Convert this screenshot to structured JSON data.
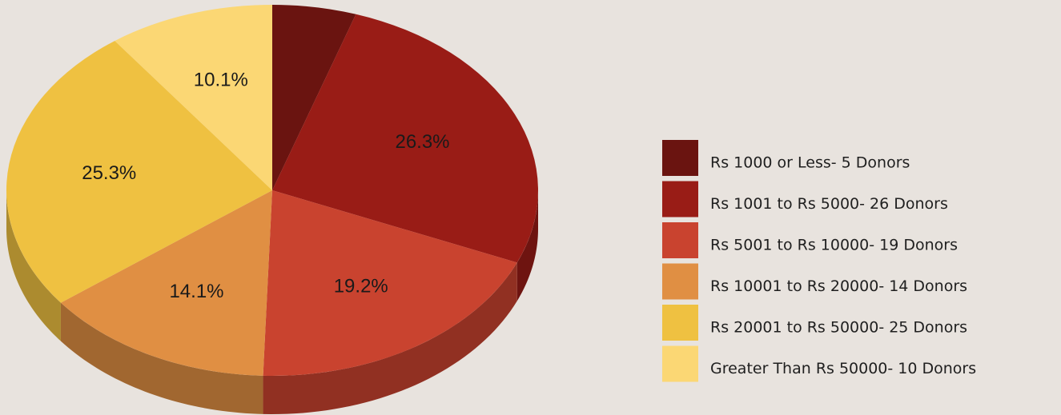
{
  "chart_data": {
    "type": "pie",
    "categories": [
      "Rs 1000 or Less- 5 Donors",
      "Rs 1001 to Rs 5000- 26 Donors",
      "Rs 5001 to Rs 10000- 19 Donors",
      "Rs 10001 to Rs 20000- 14 Donors",
      "Rs 20001 to Rs 50000- 25 Donors",
      "Greater Than Rs 50000- 10 Donors"
    ],
    "values": [
      5.1,
      26.3,
      19.2,
      14.1,
      25.3,
      10.1
    ],
    "value_labels": [
      null,
      "26.3%",
      "19.2%",
      "14.1%",
      "25.3%",
      "10.1%"
    ],
    "colors": [
      "#6a1410",
      "#991c16",
      "#c9432f",
      "#e08f43",
      "#efc141",
      "#fbd774"
    ],
    "legend": "right"
  }
}
